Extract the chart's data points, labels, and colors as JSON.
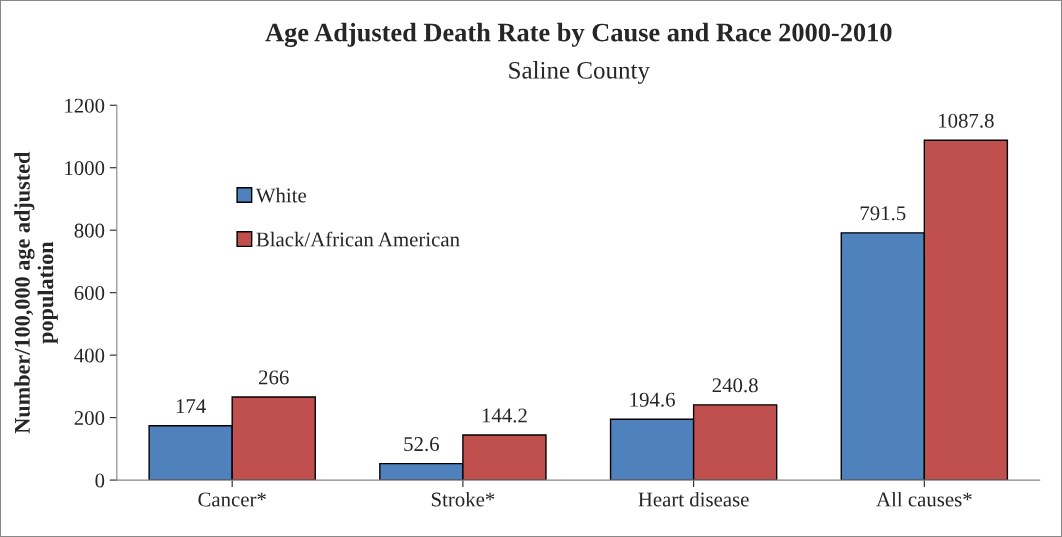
{
  "chart_data": {
    "type": "bar",
    "title": "Age Adjusted Death Rate by Cause and Race 2000-2010",
    "subtitle": "Saline County",
    "ylabel": "Number/100,000 age adjusted population",
    "categories": [
      "Cancer*",
      "Stroke*",
      "Heart disease",
      "All causes*"
    ],
    "series": [
      {
        "name": "White",
        "color": "#4f81bd",
        "values": [
          174,
          52.6,
          194.6,
          791.5
        ]
      },
      {
        "name": "Black/African American",
        "color": "#c0504d",
        "values": [
          266,
          144.2,
          240.8,
          1087.8
        ]
      }
    ],
    "ylim": [
      0,
      1200
    ],
    "yticks": [
      0,
      200,
      400,
      600,
      800,
      1000,
      1200
    ],
    "data_labels": true,
    "grid": false,
    "legend": "top left"
  }
}
